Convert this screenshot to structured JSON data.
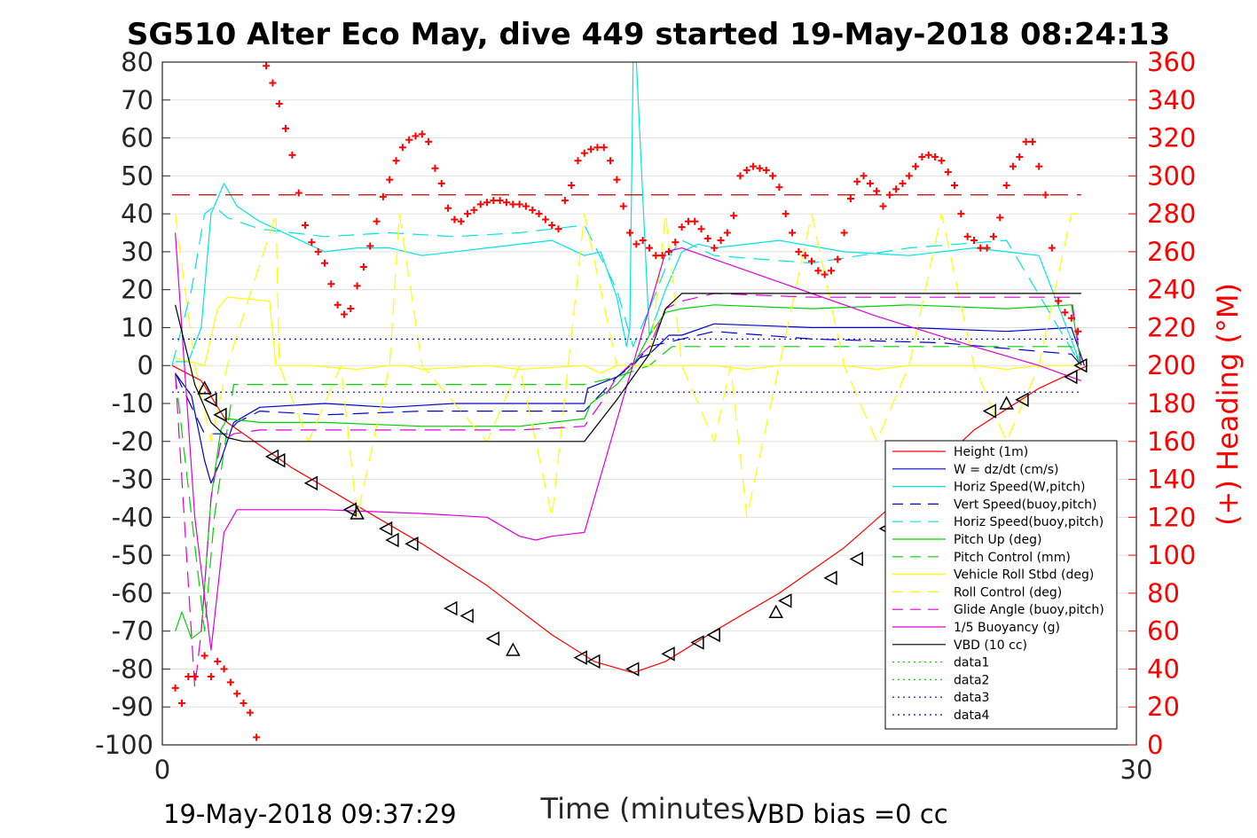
{
  "chart_data": {
    "type": "line",
    "title": "SG510 Alter Eco May, dive 449 started 19-May-2018 08:24:13",
    "xlabel": "Time (minutes)",
    "ylabel_right": "(+) Heading (°M)",
    "xlim": [
      0,
      30
    ],
    "ylim_left": [
      -100,
      80
    ],
    "ylim_right": [
      0,
      360
    ],
    "x_ticks": [
      "0",
      "30"
    ],
    "y_ticks_left": [
      "80",
      "70",
      "60",
      "50",
      "40",
      "30",
      "20",
      "10",
      "0",
      "-10",
      "-20",
      "-30",
      "-40",
      "-50",
      "-60",
      "-70",
      "-80",
      "-90",
      "-100"
    ],
    "y_ticks_right": [
      "360",
      "340",
      "320",
      "300",
      "280",
      "260",
      "240",
      "220",
      "200",
      "180",
      "160",
      "140",
      "120",
      "100",
      "80",
      "60",
      "40",
      "20",
      "0"
    ],
    "grid": true,
    "legend_position": "lower-right",
    "footer_left": "19-May-2018 09:37:29",
    "footer_right": "VBD bias =0 cc",
    "series": [
      {
        "name": "Height (1m)",
        "color": "#ff0000",
        "dash": "solid",
        "x": [
          0.3,
          1.2,
          2,
          4,
          6,
          8,
          10,
          12,
          13.3,
          14.5,
          15.5,
          17,
          19,
          21,
          23,
          25,
          27,
          28.5
        ],
        "y": [
          0,
          -4,
          -15,
          -27,
          -37,
          -47,
          -58,
          -71,
          -78,
          -81,
          -78,
          -70,
          -60,
          -48,
          -33,
          -17,
          -6,
          0
        ]
      },
      {
        "name": "W = dz/dt (cm/s)",
        "color": "#0000cd",
        "dash": "solid",
        "x": [
          0.4,
          0.9,
          1.3,
          1.5,
          1.8,
          2.2,
          3,
          5,
          7,
          9,
          11,
          13,
          13.1,
          14,
          14.7,
          15,
          15.6,
          16,
          17,
          20,
          23,
          26,
          28,
          28.4
        ],
        "y": [
          -2,
          -8,
          -25,
          -31,
          -25,
          -15,
          -11,
          -10,
          -11,
          -10,
          -10,
          -10,
          -6,
          -3,
          2,
          3,
          8,
          8,
          11,
          10,
          10,
          9,
          10,
          0
        ]
      },
      {
        "name": "Horiz Speed(W,pitch)",
        "color": "#00e5e5",
        "dash": "solid",
        "x": [
          0.4,
          0.8,
          1.2,
          1.5,
          1.9,
          2.3,
          3,
          4,
          5,
          6,
          7,
          8,
          10,
          12,
          13,
          13.5,
          14,
          14.3,
          14.4,
          14.5,
          14.6,
          15,
          15.5,
          16,
          16.5,
          17,
          19,
          21,
          23,
          25,
          27,
          28.3
        ],
        "y": [
          1,
          1,
          10,
          40,
          48,
          42,
          38,
          34,
          30,
          31,
          31,
          29,
          31,
          33,
          29,
          30,
          18,
          5,
          10,
          80,
          80,
          8,
          20,
          30,
          32,
          31,
          33,
          30,
          29,
          31,
          29,
          0
        ]
      },
      {
        "name": "Vert Speed(buoy,pitch)",
        "color": "#0000cd",
        "dash": "dashed",
        "x": [
          0.4,
          1.3,
          2,
          2.3,
          3,
          5,
          8,
          11,
          13,
          14,
          14.5,
          15,
          16,
          17,
          20,
          24,
          28,
          28.3
        ],
        "y": [
          -2,
          -18,
          -18,
          -15,
          -12,
          -13,
          -12,
          -12,
          -12,
          -3,
          0,
          5,
          7,
          9,
          7,
          6,
          3,
          0
        ]
      },
      {
        "name": "Horiz Speed(buoy,pitch)",
        "color": "#00e5e5",
        "dash": "dashed",
        "x": [
          0.3,
          0.9,
          1.3,
          1.6,
          2,
          3,
          4,
          5,
          7,
          9,
          11,
          13,
          14,
          14.5,
          15,
          15.7,
          16,
          17,
          20,
          23,
          26,
          28.3
        ],
        "y": [
          0,
          20,
          40,
          42,
          39,
          36,
          35,
          34,
          35,
          34,
          35,
          37,
          20,
          5,
          15,
          30,
          33,
          29,
          27,
          31,
          33,
          0
        ]
      },
      {
        "name": "Pitch Up (deg)",
        "color": "#00d200",
        "dash": "solid",
        "x": [
          0.4,
          0.6,
          0.9,
          1.2,
          1.5,
          1.8,
          2,
          3,
          5,
          8,
          11,
          13,
          13.2,
          14,
          14.5,
          15,
          15.5,
          16,
          17,
          20,
          23,
          26,
          28,
          28.3
        ],
        "y": [
          -70,
          -65,
          -72,
          -70,
          -35,
          -17,
          -14,
          -15,
          -15,
          -16,
          -16,
          -14,
          -10,
          -5,
          0,
          8,
          14,
          15,
          16,
          15,
          16,
          15,
          16,
          0
        ]
      },
      {
        "name": "Pitch Control (mm)",
        "color": "#00d200",
        "dash": "dashed",
        "x": [
          0.4,
          1.3,
          1.6,
          2.2,
          5,
          10,
          13,
          14,
          15,
          15.7,
          20,
          28,
          28.3
        ],
        "y": [
          -2,
          -70,
          -40,
          -5,
          -5,
          -5,
          -5,
          -3,
          0,
          5,
          5,
          5,
          0
        ]
      },
      {
        "name": "Vehicle Roll Stbd (deg)",
        "color": "#ffff00",
        "dash": "solid",
        "x": [
          0.4,
          1.3,
          1.7,
          2,
          3.3,
          3.5,
          4,
          4.5,
          6,
          7,
          7.5,
          8,
          10,
          11,
          13,
          13.5,
          14,
          15,
          16,
          16.5,
          17,
          18,
          19,
          20,
          21,
          22,
          23,
          25,
          26,
          27,
          28,
          28.3
        ],
        "y": [
          2,
          0,
          15,
          18,
          17,
          0,
          0,
          0,
          -1,
          0,
          0,
          -1,
          0,
          -1,
          0,
          -2,
          0,
          0,
          0,
          0,
          0,
          -1,
          0,
          0,
          0,
          -1,
          0,
          0,
          -1,
          0,
          0,
          0
        ]
      },
      {
        "name": "Roll Control (deg)",
        "color": "#ffff00",
        "dash": "dashed",
        "x": [
          0.4,
          1,
          1.5,
          2,
          3.5,
          3.6,
          4.5,
          5.5,
          6,
          7,
          7.3,
          8,
          10,
          11,
          12,
          12.5,
          13,
          14,
          15,
          15.5,
          16,
          17,
          17.5,
          18,
          19,
          20,
          21,
          22,
          23,
          24,
          25,
          26,
          27,
          28,
          28.4
        ],
        "y": [
          40,
          0,
          -20,
          0,
          40,
          0,
          -20,
          0,
          -40,
          0,
          40,
          0,
          -20,
          0,
          -40,
          0,
          40,
          0,
          0,
          40,
          0,
          -20,
          0,
          -40,
          0,
          40,
          0,
          -20,
          0,
          40,
          0,
          -20,
          0,
          40,
          40
        ]
      },
      {
        "name": "Glide Angle (buoy,pitch)",
        "color": "#dd00dd",
        "dash": "dashed",
        "x": [
          0.4,
          1,
          1.2,
          1.5,
          1.8,
          2.2,
          3,
          5,
          8,
          11,
          13,
          13.5,
          14,
          15,
          15.5,
          16,
          17,
          20,
          23,
          26,
          28,
          28.3
        ],
        "y": [
          -2,
          -85,
          -70,
          -35,
          -20,
          -18,
          -17,
          -17,
          -17,
          -17,
          -16,
          -10,
          -3,
          5,
          15,
          17,
          19,
          18,
          18,
          18,
          18,
          0
        ]
      },
      {
        "name": "1/5 Buoyancy (g)",
        "color": "#dd00dd",
        "dash": "solid",
        "x": [
          0.4,
          1,
          1.5,
          1.9,
          2.3,
          3,
          5,
          8,
          10,
          11,
          11.5,
          12,
          13,
          15.5,
          16,
          19,
          22,
          25,
          27,
          28.3
        ],
        "y": [
          35,
          -40,
          -75,
          -44,
          -38,
          -38,
          -38,
          -39,
          -40,
          -45,
          -46,
          -45,
          -44,
          30,
          31,
          22,
          13,
          5,
          0,
          -4
        ]
      },
      {
        "name": "VBD (10 cc)",
        "color": "#000000",
        "dash": "solid",
        "x": [
          0.4,
          1,
          1.5,
          2,
          2.5,
          5,
          8,
          11,
          13,
          14,
          15,
          15.5,
          16,
          20,
          24,
          28.3
        ],
        "y": [
          16,
          -5,
          -15,
          -19,
          -20,
          -20,
          -20,
          -20,
          -20,
          -9,
          3,
          15,
          19,
          19,
          19,
          19
        ]
      },
      {
        "name": "data1",
        "color": "#00d200",
        "dash": "dotted",
        "x": [],
        "y": []
      },
      {
        "name": "data2",
        "color": "#00d200",
        "dash": "dotted",
        "x": [],
        "y": []
      },
      {
        "name": "data3",
        "color": "#0000cd",
        "dash": "dotted",
        "x": [
          0.3,
          28.3
        ],
        "y": [
          7,
          7
        ]
      },
      {
        "name": "data4",
        "color": "#0000cd",
        "dash": "dotted",
        "x": [
          0.3,
          28.3
        ],
        "y": [
          -7,
          -7
        ]
      }
    ],
    "heading_reference": {
      "color": "#cc0000",
      "dash": "dashed",
      "y_right": 290,
      "x": [
        0.3,
        28.3
      ]
    },
    "heading_points": {
      "color": "#ff0000",
      "marker": "+",
      "x": [
        0.4,
        0.6,
        0.8,
        1,
        1.3,
        1.5,
        1.7,
        1.9,
        2.1,
        2.3,
        2.5,
        2.7,
        2.9,
        3.2,
        3.4,
        3.6,
        3.8,
        4,
        4.2,
        4.4,
        4.6,
        4.8,
        5,
        5.2,
        5.4,
        5.6,
        5.8,
        6,
        6.2,
        6.4,
        6.6,
        6.8,
        7,
        7.2,
        7.4,
        7.6,
        7.8,
        8,
        8.2,
        8.4,
        8.6,
        8.8,
        9,
        9.2,
        9.4,
        9.6,
        9.8,
        10,
        10.2,
        10.4,
        10.6,
        10.8,
        11,
        11.2,
        11.4,
        11.6,
        11.8,
        12,
        12.2,
        12.4,
        12.6,
        12.8,
        13,
        13.2,
        13.4,
        13.6,
        13.8,
        14,
        14.2,
        14.4,
        14.6,
        14.8,
        15,
        15.2,
        15.4,
        15.6,
        15.8,
        16,
        16.2,
        16.4,
        16.6,
        16.8,
        17,
        17.2,
        17.4,
        17.6,
        17.8,
        18,
        18.2,
        18.4,
        18.6,
        18.8,
        19,
        19.2,
        19.4,
        19.6,
        19.8,
        20,
        20.2,
        20.4,
        20.6,
        20.8,
        21,
        21.2,
        21.4,
        21.6,
        21.8,
        22,
        22.2,
        22.4,
        22.6,
        22.8,
        23,
        23.2,
        23.4,
        23.6,
        23.8,
        24,
        24.2,
        24.4,
        24.6,
        24.8,
        25,
        25.2,
        25.4,
        25.6,
        25.8,
        26,
        26.2,
        26.4,
        26.6,
        26.8,
        27,
        27.2,
        27.4,
        27.6,
        27.8,
        28,
        28.2
      ],
      "y_right": [
        30,
        22,
        36,
        36,
        47,
        36,
        44,
        40,
        33,
        27,
        22,
        17,
        4,
        358,
        349,
        338,
        325,
        311,
        291,
        274,
        265,
        260,
        254,
        243,
        232,
        227,
        230,
        242,
        252,
        263,
        276,
        289,
        298,
        308,
        315,
        319,
        321,
        322,
        318,
        304,
        296,
        283,
        277,
        276,
        280,
        282,
        285,
        286,
        287,
        287,
        286,
        285,
        285,
        284,
        282,
        280,
        277,
        274,
        272,
        287,
        295,
        308,
        312,
        314,
        315,
        315,
        308,
        298,
        284,
        270,
        264,
        266,
        262,
        258,
        258,
        260,
        265,
        273,
        276,
        276,
        272,
        267,
        262,
        266,
        270,
        279,
        300,
        303,
        305,
        304,
        303,
        300,
        294,
        280,
        270,
        260,
        258,
        255,
        250,
        248,
        250,
        256,
        270,
        288,
        297,
        300,
        296,
        292,
        284,
        290,
        293,
        296,
        300,
        305,
        310,
        311,
        310,
        308,
        302,
        295,
        280,
        268,
        266,
        262,
        262,
        268,
        278,
        295,
        305,
        310,
        318,
        318,
        305,
        290,
        262,
        234,
        228,
        225,
        218,
        215,
        212,
        215,
        230
      ]
    },
    "triangle_markers": {
      "x": [
        1.3,
        1.5,
        1.8,
        3.4,
        3.6,
        4.6,
        5.8,
        6,
        6.9,
        7.1,
        7.7,
        8.9,
        9.4,
        10.2,
        10.8,
        12.9,
        13.3,
        14.5,
        15.6,
        16.5,
        17,
        18.9,
        19.2,
        20.6,
        21.4,
        22.3,
        23.2,
        25.5,
        26,
        26.5,
        28,
        28.3
      ],
      "y": [
        -6,
        -9,
        -13,
        -24,
        -25,
        -31,
        -38,
        -39,
        -43,
        -46,
        -47,
        -64,
        -66,
        -72,
        -75,
        -77,
        -78,
        -80,
        -76,
        -73,
        -71,
        -65,
        -62,
        -56,
        -51,
        -43,
        -39,
        -12,
        -10,
        -9,
        -3,
        0
      ]
    }
  }
}
